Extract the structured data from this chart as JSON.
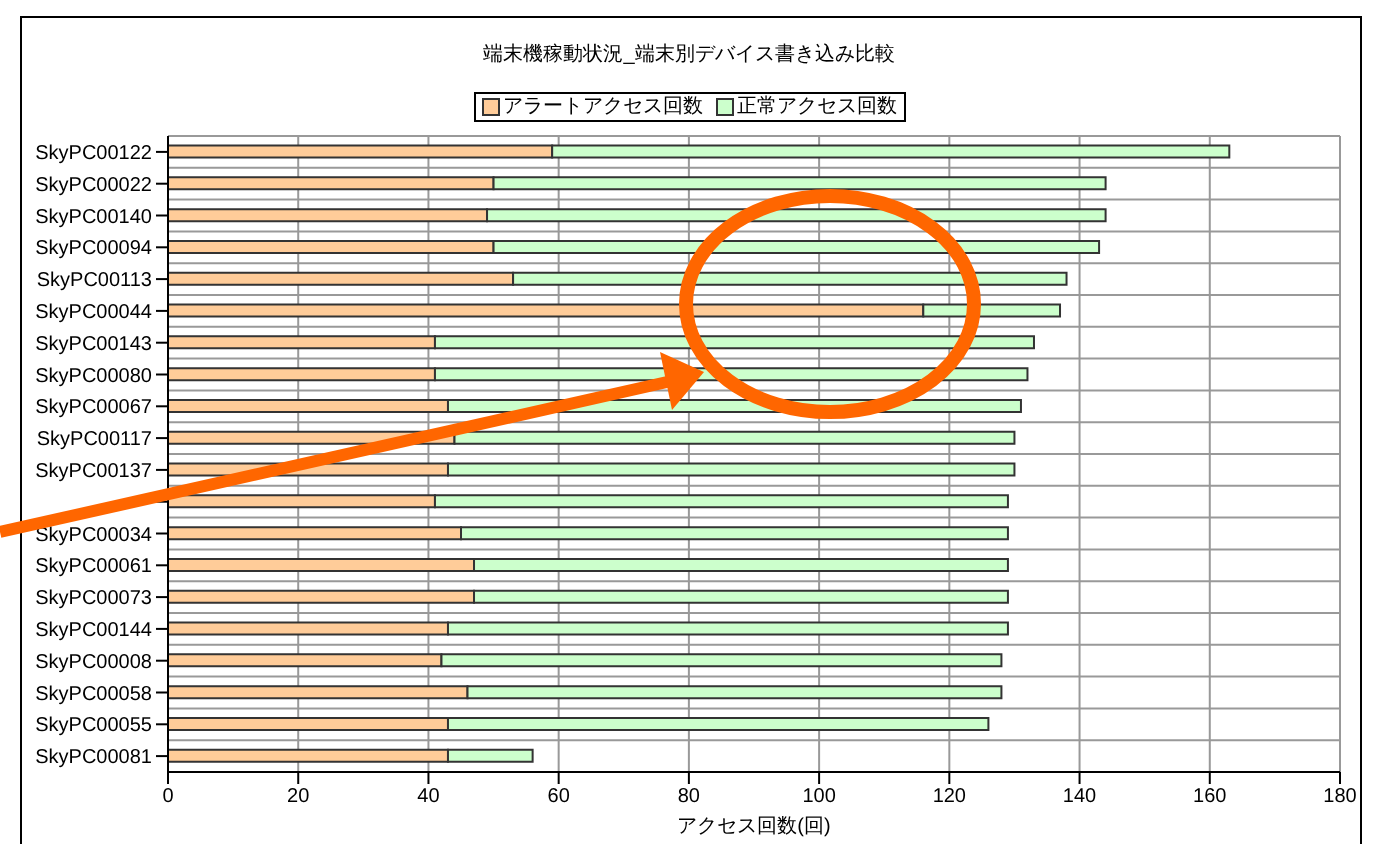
{
  "chart_data": {
    "type": "bar",
    "orientation": "horizontal",
    "stacked": true,
    "title": "端末機稼動状況_端末別デバイス書き込み比較",
    "xlabel": "アクセス回数(回)",
    "categories": [
      "SkyPC00122",
      "SkyPC00022",
      "SkyPC00140",
      "SkyPC00094",
      "SkyPC00113",
      "SkyPC00044",
      "SkyPC00143",
      "SkyPC00080",
      "SkyPC00067",
      "SkyPC00117",
      "SkyPC00137",
      null,
      "SkyPC00034",
      "SkyPC00061",
      "SkyPC00073",
      "SkyPC00144",
      "SkyPC00008",
      "SkyPC00058",
      "SkyPC00055",
      "SkyPC00081"
    ],
    "series": [
      {
        "name": "アラートアクセス回数",
        "color": "#ffcc99",
        "values": [
          59,
          50,
          49,
          50,
          53,
          116,
          41,
          41,
          43,
          44,
          43,
          41,
          45,
          47,
          47,
          43,
          42,
          46,
          43,
          43
        ]
      },
      {
        "name": "正常アクセス回数",
        "color": "#ccffcc",
        "values": [
          104,
          94,
          95,
          93,
          85,
          21,
          92,
          91,
          88,
          86,
          87,
          88,
          84,
          82,
          82,
          86,
          86,
          82,
          83,
          13
        ]
      }
    ],
    "xlim": [
      0,
      180
    ],
    "xticks": [
      0,
      20,
      40,
      60,
      80,
      100,
      120,
      140,
      160,
      180
    ],
    "grid": true,
    "legend": "top"
  }
}
